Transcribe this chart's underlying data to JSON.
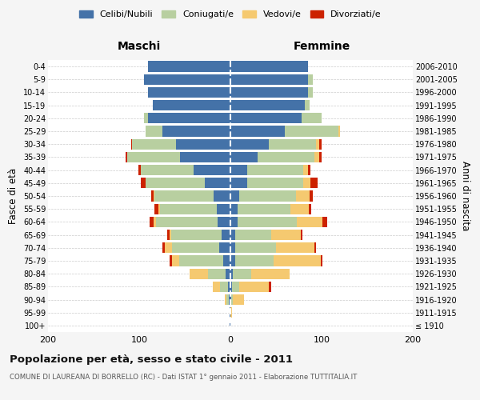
{
  "age_groups": [
    "100+",
    "95-99",
    "90-94",
    "85-89",
    "80-84",
    "75-79",
    "70-74",
    "65-69",
    "60-64",
    "55-59",
    "50-54",
    "45-49",
    "40-44",
    "35-39",
    "30-34",
    "25-29",
    "20-24",
    "15-19",
    "10-14",
    "5-9",
    "0-4"
  ],
  "birth_years": [
    "≤ 1910",
    "1911-1915",
    "1916-1920",
    "1921-1925",
    "1926-1930",
    "1931-1935",
    "1936-1940",
    "1941-1945",
    "1946-1950",
    "1951-1955",
    "1956-1960",
    "1961-1965",
    "1966-1970",
    "1971-1975",
    "1976-1980",
    "1981-1985",
    "1986-1990",
    "1991-1995",
    "1996-2000",
    "2001-2005",
    "2006-2010"
  ],
  "colors": {
    "celibe": "#4472a8",
    "coniugato": "#b8cfa0",
    "vedovo": "#f5c970",
    "divorziato": "#cc2200"
  },
  "maschi": {
    "celibe": [
      1,
      1,
      2,
      3,
      5,
      8,
      12,
      10,
      14,
      15,
      18,
      28,
      40,
      55,
      60,
      75,
      90,
      85,
      90,
      95,
      90
    ],
    "coniugato": [
      0,
      0,
      2,
      8,
      20,
      48,
      52,
      55,
      68,
      62,
      65,
      65,
      58,
      58,
      48,
      18,
      5,
      0,
      0,
      0,
      0
    ],
    "vedovo": [
      0,
      0,
      2,
      8,
      20,
      8,
      8,
      2,
      2,
      2,
      1,
      0,
      0,
      0,
      0,
      0,
      0,
      0,
      0,
      0,
      0
    ],
    "divorziato": [
      0,
      0,
      0,
      0,
      0,
      3,
      3,
      2,
      5,
      4,
      3,
      5,
      3,
      2,
      1,
      0,
      0,
      0,
      0,
      0,
      0
    ]
  },
  "femmine": {
    "nubile": [
      0,
      0,
      1,
      2,
      3,
      5,
      5,
      5,
      8,
      8,
      10,
      18,
      18,
      30,
      42,
      60,
      78,
      82,
      85,
      85,
      85
    ],
    "coniugata": [
      0,
      0,
      2,
      8,
      20,
      42,
      45,
      40,
      65,
      58,
      62,
      62,
      62,
      62,
      52,
      58,
      22,
      5,
      5,
      5,
      0
    ],
    "vedova": [
      0,
      2,
      12,
      32,
      42,
      52,
      42,
      32,
      28,
      20,
      15,
      8,
      5,
      5,
      3,
      2,
      0,
      0,
      0,
      0,
      0
    ],
    "divorziata": [
      0,
      0,
      0,
      3,
      0,
      2,
      2,
      2,
      5,
      3,
      3,
      8,
      3,
      3,
      3,
      0,
      0,
      0,
      0,
      0,
      0
    ]
  },
  "xlim": 200,
  "title": "Popolazione per età, sesso e stato civile - 2011",
  "subtitle": "COMUNE DI LAUREANA DI BORRELLO (RC) - Dati ISTAT 1° gennaio 2011 - Elaborazione TUTTITALIA.IT",
  "ylabel": "Fasce di età",
  "ylabel_right": "Anni di nascita",
  "xlabel_maschi": "Maschi",
  "xlabel_femmine": "Femmine",
  "legend_labels": [
    "Celibi/Nubili",
    "Coniugati/e",
    "Vedovi/e",
    "Divorziati/e"
  ],
  "bg_color": "#f5f5f5",
  "plot_bg": "#ffffff"
}
